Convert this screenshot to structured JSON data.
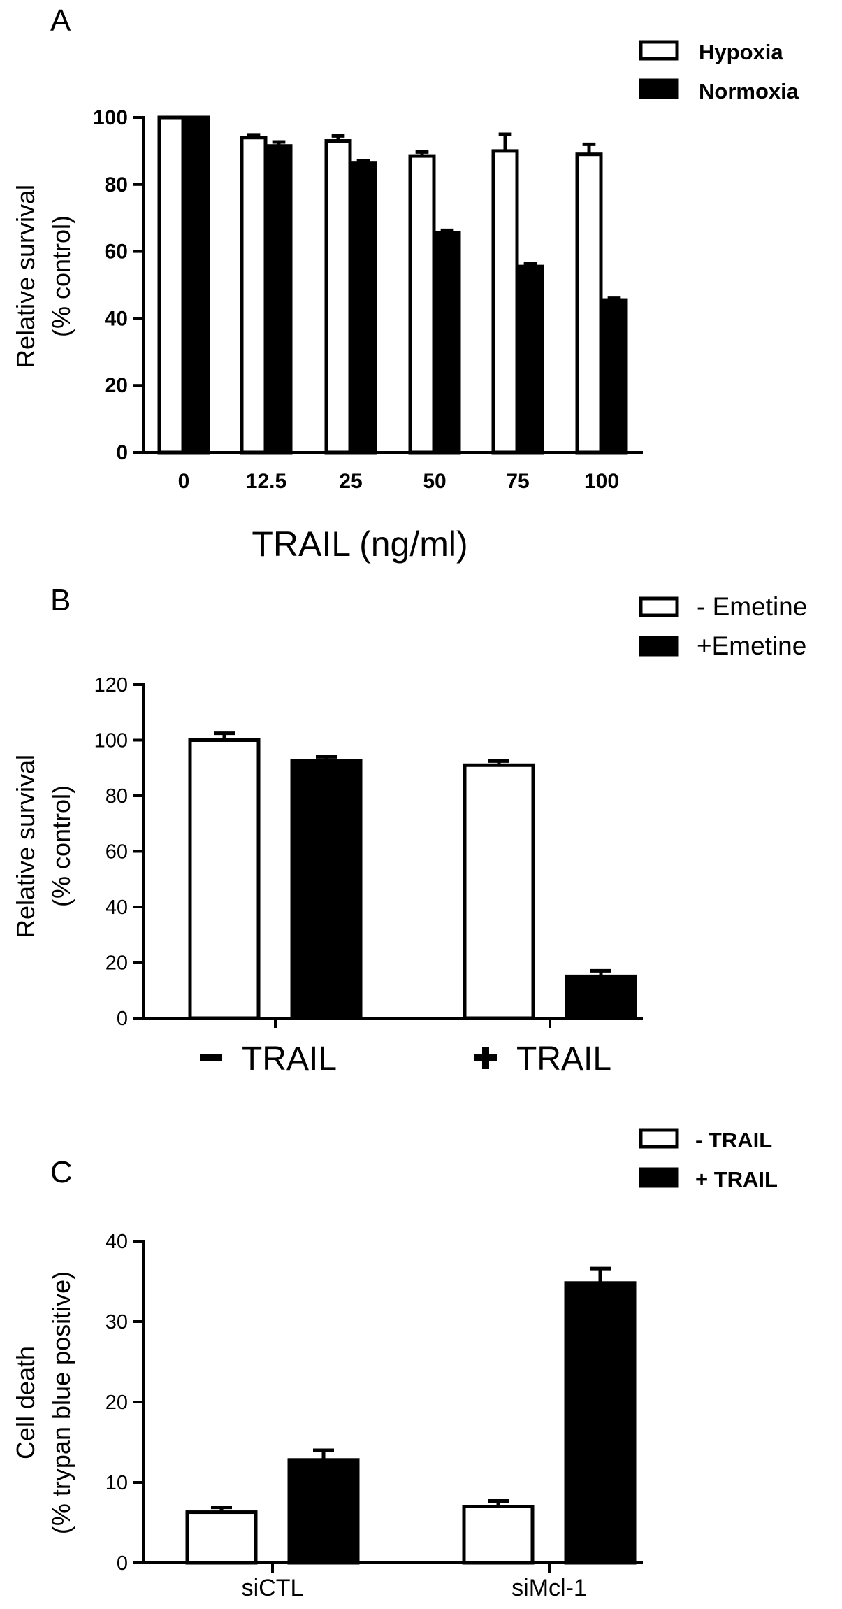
{
  "chart_data": [
    {
      "panel": "A",
      "type": "bar",
      "categories": [
        "0",
        "12.5",
        "25",
        "50",
        "75",
        "100"
      ],
      "series": [
        {
          "name": "Hypoxia",
          "fill": "#ffffff",
          "values": [
            100,
            94,
            93,
            88.5,
            90,
            89
          ],
          "errors": [
            0,
            0.8,
            1.5,
            1.2,
            5,
            3
          ]
        },
        {
          "name": "Normoxia",
          "fill": "#000000",
          "values": [
            100,
            91.5,
            86.5,
            65.5,
            55.5,
            45.5
          ],
          "errors": [
            0,
            1.2,
            0.5,
            0.8,
            0.8,
            0.5
          ]
        }
      ],
      "xlabel": "TRAIL (ng/ml)",
      "ylabel": [
        "Relative survival",
        "(% control)"
      ],
      "ylim": [
        0,
        100
      ],
      "yticks": [
        0,
        20,
        40,
        60,
        80,
        100
      ],
      "legend": "top-right"
    },
    {
      "panel": "B",
      "type": "bar",
      "categories": [
        "TRAIL",
        "TRAIL"
      ],
      "category_signs": [
        "minus",
        "plus"
      ],
      "series": [
        {
          "name": "- Emetine",
          "fill": "#ffffff",
          "values": [
            100,
            91
          ],
          "errors": [
            2.5,
            1.5
          ]
        },
        {
          "name": "+Emetine",
          "fill": "#000000",
          "values": [
            92.5,
            15
          ],
          "errors": [
            1.5,
            2
          ]
        }
      ],
      "xlabel": "",
      "ylabel": [
        "Relative survival",
        "(% control)"
      ],
      "ylim": [
        0,
        120
      ],
      "yticks": [
        0,
        20,
        40,
        60,
        80,
        100,
        120
      ],
      "legend": "top-right"
    },
    {
      "panel": "C",
      "type": "bar",
      "categories": [
        "siCTL",
        "siMcl-1"
      ],
      "series": [
        {
          "name": "- TRAIL",
          "fill": "#ffffff",
          "values": [
            6.3,
            7
          ],
          "errors": [
            0.6,
            0.7
          ]
        },
        {
          "name": "+ TRAIL",
          "fill": "#000000",
          "values": [
            12.8,
            34.8
          ],
          "errors": [
            1.2,
            1.8
          ]
        }
      ],
      "xlabel": "",
      "ylabel": [
        "Cell death",
        "(% trypan blue positive)"
      ],
      "ylim": [
        0,
        40
      ],
      "yticks": [
        0,
        10,
        20,
        30,
        40
      ],
      "legend": "top-right"
    }
  ]
}
